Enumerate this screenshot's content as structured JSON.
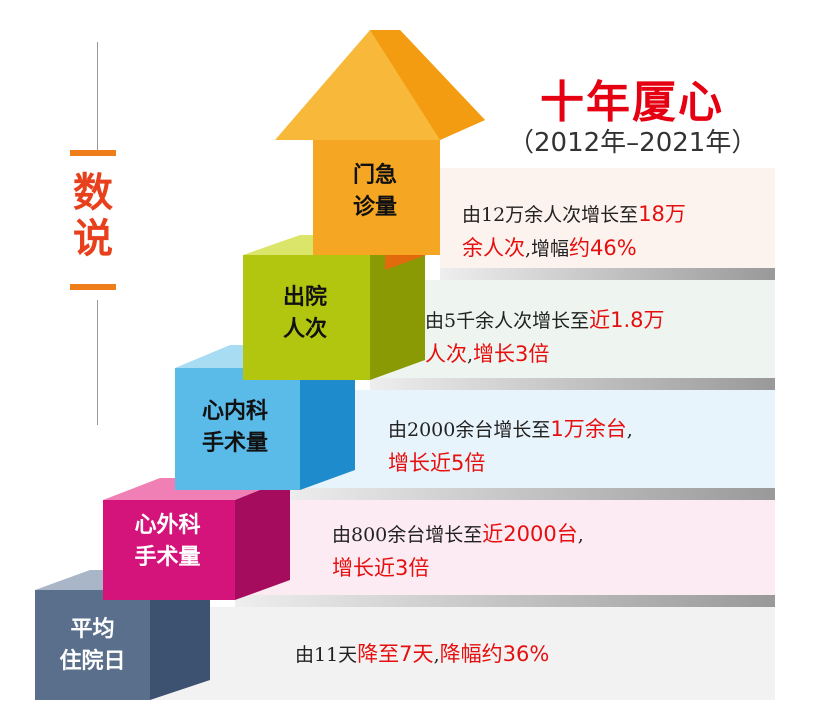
{
  "side_title": "数说",
  "title": "十年厦心",
  "subtitle": "（2012年–2021年）",
  "colors": {
    "red": "#e60f0f",
    "orange": "#f29a1a",
    "green": "#b3c60f",
    "blue": "#4ab0e0",
    "magenta": "#d4147a",
    "slate": "#5a6f8c"
  },
  "steps": [
    {
      "label_l1": "门急诊量",
      "label": [
        "门急",
        "诊量"
      ],
      "desc": [
        [
          {
            "t": "由12万余人次增长至",
            "r": false
          },
          {
            "t": "18万",
            "r": true
          }
        ],
        [
          {
            "t": "余人次",
            "r": true
          },
          {
            "t": ",增幅",
            "r": false
          },
          {
            "t": "约46%",
            "r": true
          }
        ]
      ]
    },
    {
      "label": [
        "出院",
        "人次"
      ],
      "desc": [
        [
          {
            "t": "由5千余人次增长至",
            "r": false
          },
          {
            "t": "近1.8万",
            "r": true
          }
        ],
        [
          {
            "t": "人次",
            "r": true
          },
          {
            "t": ",",
            "r": false
          },
          {
            "t": "增长3倍",
            "r": true
          }
        ]
      ]
    },
    {
      "label": [
        "心内科",
        "手术量"
      ],
      "desc": [
        [
          {
            "t": "由2000余台增长至",
            "r": false
          },
          {
            "t": "1万余台",
            "r": true
          },
          {
            "t": ",",
            "r": false
          }
        ],
        [
          {
            "t": "增长近5倍",
            "r": true
          }
        ]
      ]
    },
    {
      "label": [
        "心外科",
        "手术量"
      ],
      "desc": [
        [
          {
            "t": "由800余台增长至",
            "r": false
          },
          {
            "t": "近2000台",
            "r": true
          },
          {
            "t": ",",
            "r": false
          }
        ],
        [
          {
            "t": "增长近3倍",
            "r": true
          }
        ]
      ]
    },
    {
      "label": [
        "平均",
        "住院日"
      ],
      "desc": [
        [
          {
            "t": "由11天",
            "r": false
          },
          {
            "t": "降至7天",
            "r": true
          },
          {
            "t": ",",
            "r": false
          },
          {
            "t": "降幅约36%",
            "r": true
          }
        ]
      ]
    }
  ]
}
